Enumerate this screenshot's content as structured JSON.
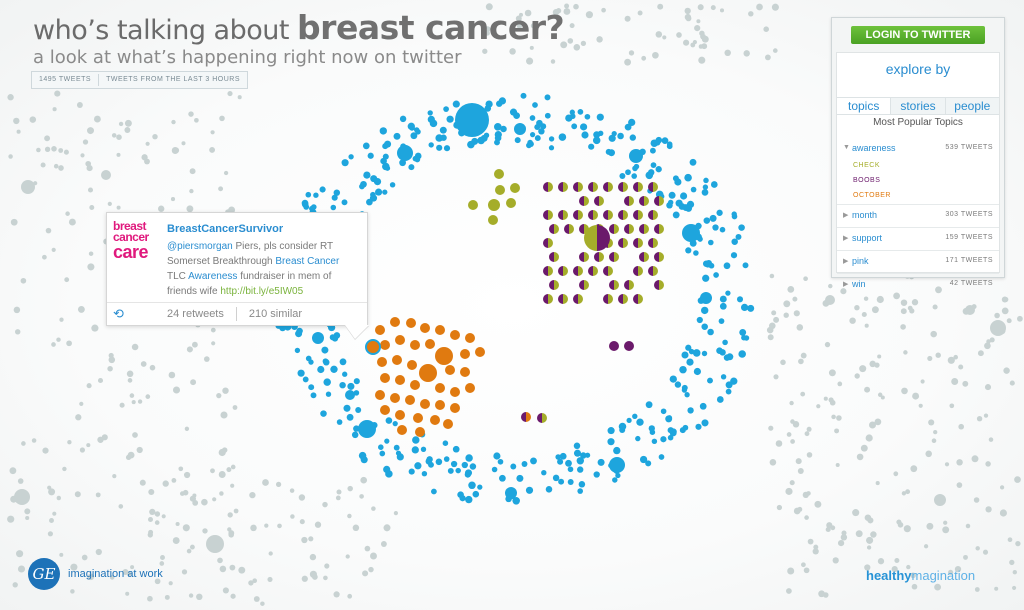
{
  "header": {
    "title_prefix": "who’s talking about",
    "title_subject": "breast cancer?",
    "subtitle": "a look at what’s happening right now on twitter",
    "tweet_count": "1495 tweets",
    "time_range": "tweets from the last 3 hours"
  },
  "tweet": {
    "logo_line1": "breast",
    "logo_line2": "cancer",
    "logo_line3": "care",
    "user": "BreastCancerSurvivor",
    "mention": "@piersmorgan",
    "text1": " Piers, pls consider RT Somerset Breakthrough ",
    "link1": "Breast Cancer",
    "text2": " TLC ",
    "link2": "Awareness",
    "text3": " fundraiser in mem of friends wife ",
    "url": "http://bit.ly/e5IW05",
    "retweets": "24 retweets",
    "similar": "210 similar"
  },
  "panel": {
    "login_label": "LOGIN TO TWITTER",
    "explore_title": "explore by",
    "tabs": [
      "topics",
      "stories",
      "people"
    ],
    "most_popular": "Most Popular Topics",
    "topics": [
      {
        "name": "awareness",
        "count": "539 tweets",
        "subs": [
          {
            "label": "check",
            "color": "#a5ad2a"
          },
          {
            "label": "boobs",
            "color": "#6b1a6b"
          },
          {
            "label": "october",
            "color": "#e07a10"
          }
        ]
      },
      {
        "name": "month",
        "count": "303 tweets"
      },
      {
        "name": "support",
        "count": "159 tweets"
      },
      {
        "name": "pink",
        "count": "171 tweets"
      },
      {
        "name": "win",
        "count": "42 tweets"
      }
    ]
  },
  "footer": {
    "ge_mark": "GE",
    "ge_tagline": "imagination at work",
    "healthy": "healthy",
    "magination": "magination"
  },
  "colors": {
    "blue": "#1ea5dd",
    "orange": "#e07a10",
    "olive": "#a5ad2a",
    "purple": "#6b1a6b",
    "gray": "#c8d2d2"
  }
}
